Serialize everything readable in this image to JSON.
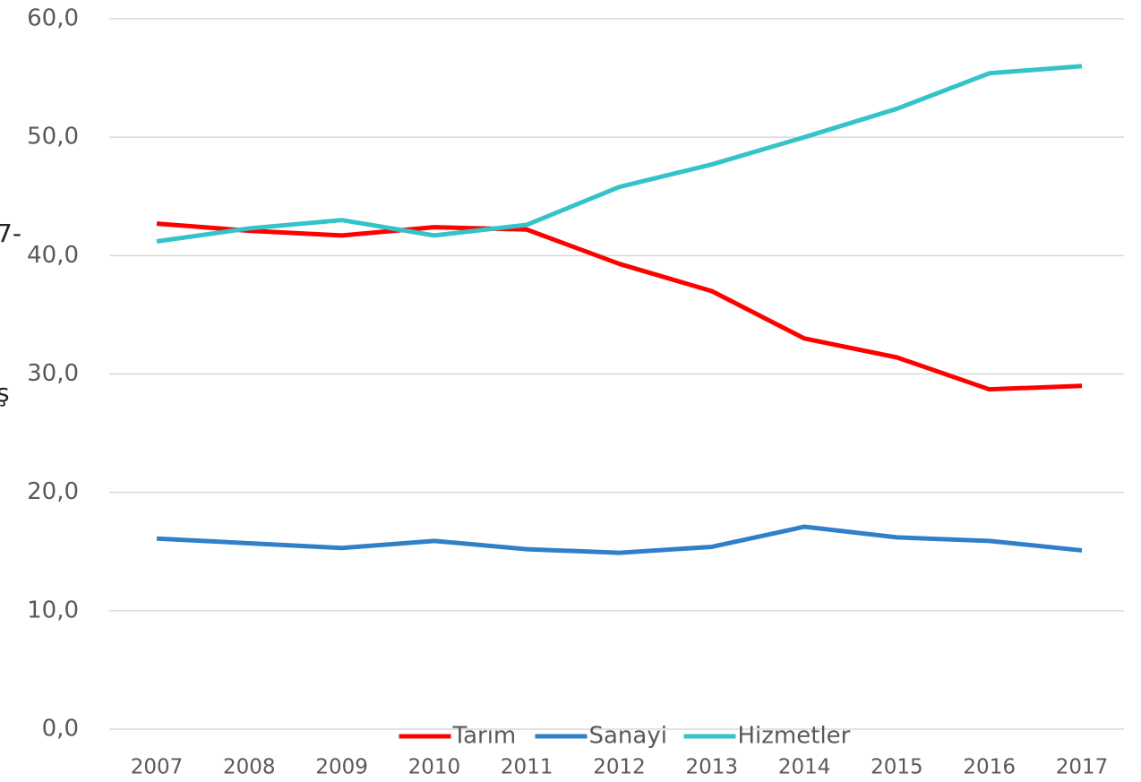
{
  "chart_data": {
    "type": "line",
    "annotations": [
      "7-",
      "ş"
    ],
    "categories": [
      "2007",
      "2008",
      "2009",
      "2010",
      "2011",
      "2012",
      "2013",
      "2014",
      "2015",
      "2016",
      "2017"
    ],
    "series": [
      {
        "name": "Tarım",
        "color": "#ff0000",
        "values": [
          42.7,
          42.1,
          41.7,
          42.4,
          42.2,
          39.3,
          37.0,
          33.0,
          31.4,
          28.7,
          29.0
        ]
      },
      {
        "name": "Sanayi",
        "color": "#2f80c8",
        "values": [
          16.1,
          15.7,
          15.3,
          15.9,
          15.2,
          14.9,
          15.4,
          17.1,
          16.2,
          15.9,
          15.1
        ]
      },
      {
        "name": "Hizmetler",
        "color": "#33c3c8",
        "values": [
          41.2,
          42.3,
          43.0,
          41.7,
          42.6,
          45.8,
          47.7,
          50.0,
          52.4,
          55.4,
          56.0
        ]
      }
    ],
    "ylim": [
      0,
      60
    ],
    "yticks": [
      {
        "value": 0,
        "label": "0,0"
      },
      {
        "value": 10,
        "label": "10,0"
      },
      {
        "value": 20,
        "label": "20,0"
      },
      {
        "value": 30,
        "label": "30,0"
      },
      {
        "value": 40,
        "label": "40,0"
      },
      {
        "value": 50,
        "label": "50,0"
      },
      {
        "value": 60,
        "label": "60,0"
      }
    ],
    "grid": true,
    "legend": "bottom"
  }
}
